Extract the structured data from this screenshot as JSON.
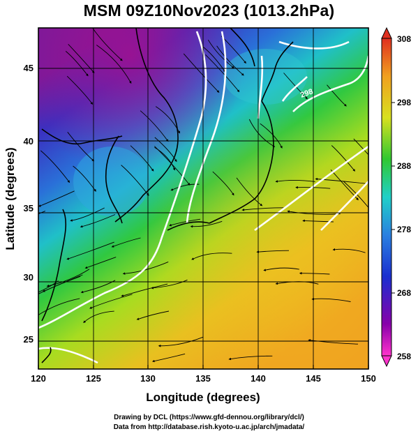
{
  "title": "MSM 09Z10Nov2023 (1013.2hPa)",
  "axes": {
    "xlabel": "Longitude (degrees)",
    "ylabel": "Latitude  (degrees)",
    "x_ticks": [
      "120",
      "125",
      "130",
      "135",
      "140",
      "145",
      "150"
    ],
    "y_ticks": [
      "25",
      "30",
      "35",
      "40",
      "45"
    ],
    "xlim": [
      120,
      150
    ],
    "ylim": [
      22.4,
      47.6
    ]
  },
  "colorbar": {
    "labels": [
      "308",
      "298",
      "288",
      "278",
      "268",
      "258"
    ],
    "min": 258,
    "max": 308,
    "unit_hint": "temperature (K)"
  },
  "contour_labels": [
    "298"
  ],
  "credits": {
    "line1": "Drawing by DCL (https://www.gfd-dennou.org/library/dcl/)",
    "line2": "Data from http://database.rish.kyoto-u.ac.jp/arch/jmadata/"
  },
  "colors": {
    "cold": "#7a0f8f",
    "cool": "#1f3fc8",
    "mid": "#20d0c0",
    "green": "#30c830",
    "yellow": "#e0e020",
    "warm": "#f0a020",
    "contour": "#ffffff",
    "streamline": "#000000"
  }
}
